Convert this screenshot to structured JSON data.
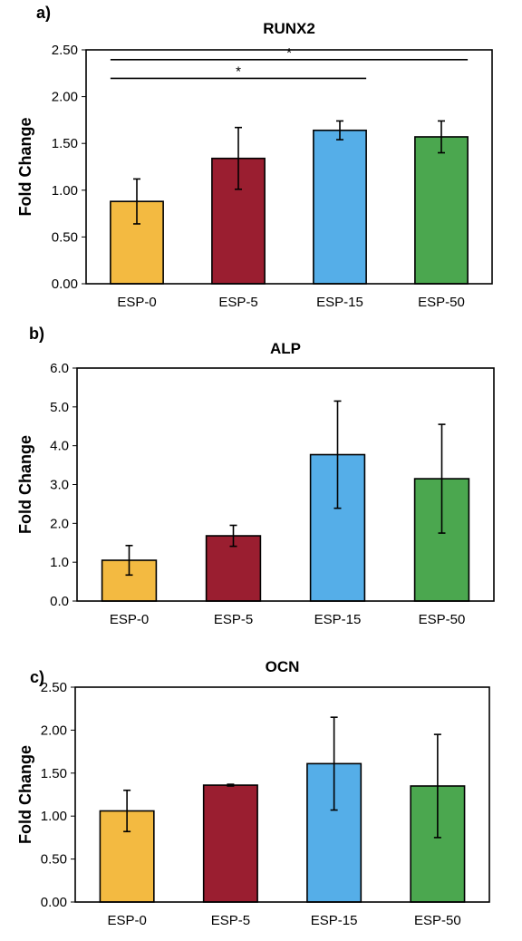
{
  "chart_data": [
    {
      "panel": "a)",
      "type": "bar",
      "title": "RUNX2",
      "ylabel": "Fold Change",
      "categories": [
        "ESP-0",
        "ESP-5",
        "ESP-15",
        "ESP-50"
      ],
      "values": [
        0.88,
        1.34,
        1.64,
        1.57
      ],
      "errors": [
        0.24,
        0.33,
        0.1,
        0.17
      ],
      "ylim": [
        0,
        2.5
      ],
      "yticks": [
        "0.00",
        "0.50",
        "1.00",
        "1.50",
        "2.00",
        "2.50"
      ],
      "significance": [
        {
          "from": "ESP-0",
          "to": "ESP-15",
          "label": "*"
        },
        {
          "from": "ESP-0",
          "to": "ESP-50",
          "label": "*"
        }
      ],
      "colors": [
        "#F3BA41",
        "#9A1E30",
        "#55AEE8",
        "#4BA74F"
      ],
      "grid": false
    },
    {
      "panel": "b)",
      "type": "bar",
      "title": "ALP",
      "ylabel": "Fold Change",
      "categories": [
        "ESP-0",
        "ESP-5",
        "ESP-15",
        "ESP-50"
      ],
      "values": [
        1.05,
        1.68,
        3.77,
        3.15
      ],
      "errors": [
        0.38,
        0.27,
        1.38,
        1.4
      ],
      "ylim": [
        0,
        6
      ],
      "yticks": [
        "0.0",
        "1.0",
        "2.0",
        "3.0",
        "4.0",
        "5.0",
        "6.0"
      ],
      "significance": [],
      "colors": [
        "#F3BA41",
        "#9A1E30",
        "#55AEE8",
        "#4BA74F"
      ],
      "grid": false
    },
    {
      "panel": "c)",
      "type": "bar",
      "title": "OCN",
      "ylabel": "Fold Change",
      "categories": [
        "ESP-0",
        "ESP-5",
        "ESP-15",
        "ESP-50"
      ],
      "values": [
        1.06,
        1.36,
        1.61,
        1.35
      ],
      "errors": [
        0.24,
        0.01,
        0.54,
        0.6
      ],
      "ylim": [
        0,
        2.5
      ],
      "yticks": [
        "0.00",
        "0.50",
        "1.00",
        "1.50",
        "2.00",
        "2.50"
      ],
      "significance": [],
      "colors": [
        "#F3BA41",
        "#9A1E30",
        "#55AEE8",
        "#4BA74F"
      ],
      "grid": false
    }
  ]
}
